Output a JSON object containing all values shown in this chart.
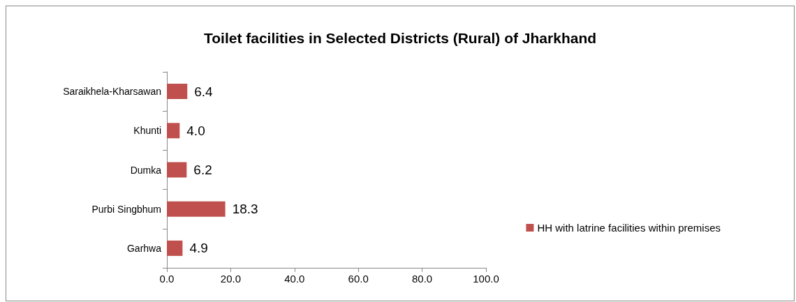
{
  "chart_data": {
    "type": "bar",
    "title": "Toilet facilities in Selected Districts (Rural) of Jharkhand",
    "orientation": "horizontal",
    "categories": [
      "Saraikhela-Kharsawan",
      "Khunti",
      "Dumka",
      "Purbi Singbhum",
      "Garhwa"
    ],
    "series": [
      {
        "name": "HH with latrine facilities within premises",
        "color": "#c0504d",
        "values": [
          6.4,
          4.0,
          6.2,
          18.3,
          4.9
        ],
        "value_labels": [
          "6.4",
          "4.0",
          "6.2",
          "18.3",
          "4.9"
        ]
      }
    ],
    "xlim": [
      0,
      100
    ],
    "xticks": [
      {
        "value": 0,
        "label": "0.0"
      },
      {
        "value": 20,
        "label": "20.0"
      },
      {
        "value": 40,
        "label": "40.0"
      },
      {
        "value": 60,
        "label": "60.0"
      },
      {
        "value": 80,
        "label": "80.0"
      },
      {
        "value": 100,
        "label": "100.0"
      }
    ],
    "grid": false,
    "legend": "right"
  }
}
